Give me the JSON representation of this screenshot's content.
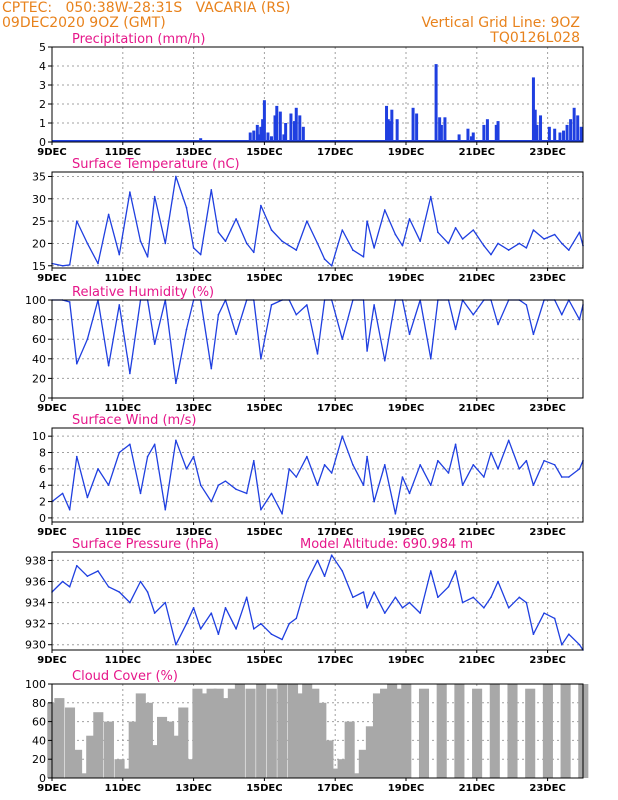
{
  "header": {
    "left_line1": "CPTEC:   050:38W-28:31S   VACARIA (RS)",
    "left_line2": "09DEC2020 9OZ (GMT)",
    "right_line1": "Vertical Grid Line: 9OZ",
    "right_line2": "TQ0126L028"
  },
  "colors": {
    "header": "#e8821c",
    "title": "#e6178a",
    "series": "#1f3fe0",
    "cloud_fill": "#a8a8a8",
    "grid": "#a0a0a0"
  },
  "x_axis": {
    "labels": [
      "9DEC",
      "11DEC",
      "13DEC",
      "15DEC",
      "17DEC",
      "19DEC",
      "21DEC",
      "23DEC"
    ],
    "label_days": [
      0,
      2,
      4,
      6,
      8,
      10,
      12,
      14
    ],
    "start": "09DEC2020",
    "end_day": 15
  },
  "chart_data": [
    {
      "type": "bar",
      "title": "Precipitation (mm/h)",
      "ylim": [
        0,
        5
      ],
      "yticks": [
        0,
        1,
        2,
        3,
        4,
        5
      ],
      "x": [
        4.2,
        5.6,
        5.7,
        5.8,
        5.85,
        5.9,
        5.95,
        6.0,
        6.1,
        6.2,
        6.3,
        6.35,
        6.45,
        6.55,
        6.6,
        6.75,
        6.85,
        6.9,
        7.0,
        7.1,
        9.45,
        9.5,
        9.55,
        9.6,
        9.75,
        10.2,
        10.3,
        10.85,
        10.95,
        11.0,
        11.1,
        11.5,
        11.75,
        11.85,
        11.9,
        12.2,
        12.3,
        12.55,
        12.6,
        13.6,
        13.65,
        13.7,
        13.8,
        14.05,
        14.2,
        14.35,
        14.45,
        14.55,
        14.65,
        14.75,
        14.85,
        14.95
      ],
      "values": [
        0.2,
        0.5,
        0.6,
        0.9,
        0.4,
        0.8,
        1.2,
        2.2,
        0.5,
        0.3,
        1.4,
        1.9,
        1.6,
        0.4,
        1.0,
        1.5,
        1.1,
        1.8,
        1.4,
        0.8,
        1.9,
        1.2,
        1.1,
        1.7,
        1.2,
        1.8,
        1.5,
        4.1,
        1.3,
        0.9,
        1.3,
        0.4,
        0.7,
        0.3,
        0.5,
        0.9,
        1.2,
        0.9,
        1.1,
        3.4,
        1.7,
        0.9,
        1.4,
        0.8,
        0.7,
        0.5,
        0.6,
        0.9,
        1.2,
        1.8,
        1.4,
        0.8
      ]
    },
    {
      "type": "line",
      "title": "Surface Temperature (nC)",
      "ylim": [
        14.5,
        36
      ],
      "yticks": [
        15,
        20,
        25,
        30,
        35
      ],
      "x": [
        0,
        0.3,
        0.5,
        0.7,
        1.0,
        1.3,
        1.6,
        1.9,
        2.2,
        2.5,
        2.7,
        2.9,
        3.2,
        3.5,
        3.8,
        4.0,
        4.2,
        4.5,
        4.7,
        4.9,
        5.2,
        5.5,
        5.7,
        5.9,
        6.2,
        6.5,
        6.7,
        6.9,
        7.2,
        7.5,
        7.7,
        7.9,
        8.2,
        8.5,
        8.8,
        8.9,
        9.1,
        9.4,
        9.7,
        9.9,
        10.1,
        10.4,
        10.7,
        10.9,
        11.2,
        11.4,
        11.6,
        11.9,
        12.2,
        12.4,
        12.6,
        12.9,
        13.2,
        13.4,
        13.6,
        13.9,
        14.2,
        14.4,
        14.6,
        14.9,
        15.0
      ],
      "values": [
        15.5,
        15,
        15.2,
        25,
        20,
        15.5,
        26.5,
        17.5,
        31.5,
        20.5,
        17,
        30.5,
        20,
        35,
        28,
        19,
        17.5,
        32,
        22.5,
        20.5,
        25.5,
        20,
        18,
        28.5,
        23,
        20.5,
        19.5,
        18.5,
        25,
        20,
        16.5,
        15,
        23,
        18.5,
        17,
        25,
        19,
        27.5,
        22,
        19.5,
        25.5,
        20.5,
        30.5,
        22.5,
        20,
        23.5,
        21,
        23,
        19.5,
        17.5,
        20,
        18.5,
        20,
        19,
        23,
        21,
        22,
        20,
        18.5,
        22.5,
        19.5
      ]
    },
    {
      "type": "line",
      "title": "Relative Humidity (%)",
      "ylim": [
        0,
        100
      ],
      "yticks": [
        0,
        20,
        40,
        60,
        80,
        100
      ],
      "x": [
        0,
        0.3,
        0.5,
        0.7,
        1.0,
        1.3,
        1.6,
        1.9,
        2.2,
        2.5,
        2.7,
        2.9,
        3.2,
        3.5,
        3.8,
        4.0,
        4.2,
        4.5,
        4.7,
        4.9,
        5.2,
        5.5,
        5.7,
        5.9,
        6.2,
        6.5,
        6.7,
        6.9,
        7.2,
        7.5,
        7.7,
        7.9,
        8.2,
        8.5,
        8.8,
        8.9,
        9.1,
        9.4,
        9.7,
        9.9,
        10.1,
        10.4,
        10.7,
        10.9,
        11.2,
        11.4,
        11.6,
        11.9,
        12.2,
        12.4,
        12.6,
        12.9,
        13.2,
        13.4,
        13.6,
        13.9,
        14.2,
        14.4,
        14.6,
        14.9,
        15.0
      ],
      "values": [
        100,
        100,
        98,
        35,
        60,
        100,
        33,
        95,
        25,
        100,
        100,
        55,
        100,
        15,
        70,
        100,
        100,
        30,
        85,
        100,
        65,
        100,
        100,
        40,
        95,
        100,
        100,
        85,
        95,
        45,
        100,
        100,
        60,
        100,
        100,
        48,
        95,
        38,
        100,
        100,
        65,
        100,
        40,
        100,
        100,
        70,
        100,
        85,
        100,
        100,
        75,
        100,
        100,
        95,
        65,
        100,
        100,
        85,
        100,
        80,
        95
      ]
    },
    {
      "type": "line",
      "title": "Surface Wind (m/s)",
      "ylim": [
        -0.5,
        11
      ],
      "yticks": [
        0,
        2,
        4,
        6,
        8,
        10
      ],
      "x": [
        0,
        0.3,
        0.5,
        0.7,
        1.0,
        1.3,
        1.6,
        1.9,
        2.2,
        2.5,
        2.7,
        2.9,
        3.2,
        3.5,
        3.8,
        4.0,
        4.2,
        4.5,
        4.7,
        4.9,
        5.2,
        5.5,
        5.7,
        5.9,
        6.2,
        6.5,
        6.7,
        6.9,
        7.2,
        7.5,
        7.7,
        7.9,
        8.2,
        8.5,
        8.8,
        8.9,
        9.1,
        9.4,
        9.7,
        9.9,
        10.1,
        10.4,
        10.7,
        10.9,
        11.2,
        11.4,
        11.6,
        11.9,
        12.2,
        12.4,
        12.6,
        12.9,
        13.2,
        13.4,
        13.6,
        13.9,
        14.2,
        14.4,
        14.6,
        14.9,
        15.0
      ],
      "values": [
        2,
        3,
        1,
        7.5,
        2.5,
        6,
        4,
        8,
        9,
        3,
        7.5,
        9,
        1,
        9.5,
        6,
        7.5,
        4,
        2,
        4,
        4.5,
        3.5,
        3,
        7,
        1,
        3,
        0.5,
        6,
        5,
        7.5,
        4,
        6.5,
        5.5,
        10,
        6.5,
        4,
        7.5,
        2,
        6.5,
        0.5,
        5,
        3,
        6.5,
        4,
        7,
        5.5,
        9,
        4,
        6.5,
        5,
        8,
        6,
        9.5,
        6,
        7,
        4,
        7,
        6.5,
        5,
        5,
        6,
        7
      ]
    },
    {
      "type": "line",
      "title": "Surface Pressure (hPa)",
      "ylim": [
        929.5,
        938.8
      ],
      "yticks": [
        930,
        932,
        934,
        936,
        938
      ],
      "x": [
        0,
        0.3,
        0.5,
        0.7,
        1.0,
        1.3,
        1.6,
        1.9,
        2.2,
        2.5,
        2.7,
        2.9,
        3.2,
        3.5,
        3.8,
        4.0,
        4.2,
        4.5,
        4.7,
        4.9,
        5.2,
        5.5,
        5.7,
        5.9,
        6.2,
        6.5,
        6.7,
        6.9,
        7.2,
        7.5,
        7.7,
        7.9,
        8.2,
        8.5,
        8.8,
        8.9,
        9.1,
        9.4,
        9.7,
        9.9,
        10.1,
        10.4,
        10.7,
        10.9,
        11.2,
        11.4,
        11.6,
        11.9,
        12.2,
        12.4,
        12.6,
        12.9,
        13.2,
        13.4,
        13.6,
        13.9,
        14.2,
        14.4,
        14.6,
        14.9,
        15.0
      ],
      "values": [
        935,
        936,
        935.5,
        937.5,
        936.5,
        937,
        935.5,
        935,
        934,
        936,
        935,
        933,
        934,
        930,
        932,
        933.5,
        931.5,
        933,
        931,
        933.5,
        931.5,
        934.5,
        931.5,
        932,
        931,
        930.5,
        932,
        932.5,
        936,
        938,
        936.5,
        938.5,
        937,
        934.5,
        935,
        933.5,
        935,
        933,
        934.5,
        933.5,
        934,
        933,
        937,
        934.5,
        935.5,
        937,
        934,
        934.5,
        933.5,
        934.5,
        936,
        933.5,
        934.5,
        934,
        931,
        933,
        932.5,
        930,
        931,
        930,
        929.5
      ],
      "annotation": "Model Altitude: 690.984 m"
    },
    {
      "type": "area",
      "title": "Cloud Cover (%)",
      "ylim": [
        0,
        100
      ],
      "yticks": [
        0,
        20,
        40,
        60,
        80,
        100
      ],
      "x": [
        0,
        0.2,
        0.5,
        0.7,
        0.9,
        1.1,
        1.3,
        1.6,
        1.9,
        2.1,
        2.3,
        2.5,
        2.7,
        2.9,
        3.1,
        3.3,
        3.5,
        3.7,
        3.9,
        4.1,
        4.3,
        4.5,
        4.7,
        4.9,
        5.1,
        5.3,
        5.6,
        5.9,
        6.2,
        6.5,
        6.8,
        7.0,
        7.2,
        7.4,
        7.6,
        7.8,
        8.0,
        8.2,
        8.4,
        8.6,
        8.8,
        9.0,
        9.2,
        9.4,
        9.6,
        9.8,
        10.0,
        10.5,
        11.0,
        11.5,
        12.0,
        12.5,
        13.0,
        13.5,
        14.0,
        14.5,
        15.0
      ],
      "values": [
        80,
        85,
        75,
        30,
        5,
        45,
        70,
        60,
        20,
        10,
        60,
        90,
        80,
        35,
        65,
        60,
        45,
        75,
        20,
        95,
        90,
        95,
        95,
        85,
        95,
        100,
        95,
        100,
        95,
        100,
        100,
        90,
        100,
        95,
        80,
        40,
        10,
        20,
        60,
        5,
        30,
        55,
        90,
        95,
        100,
        95,
        100,
        95,
        100,
        100,
        95,
        100,
        100,
        95,
        100,
        100,
        100
      ]
    }
  ]
}
